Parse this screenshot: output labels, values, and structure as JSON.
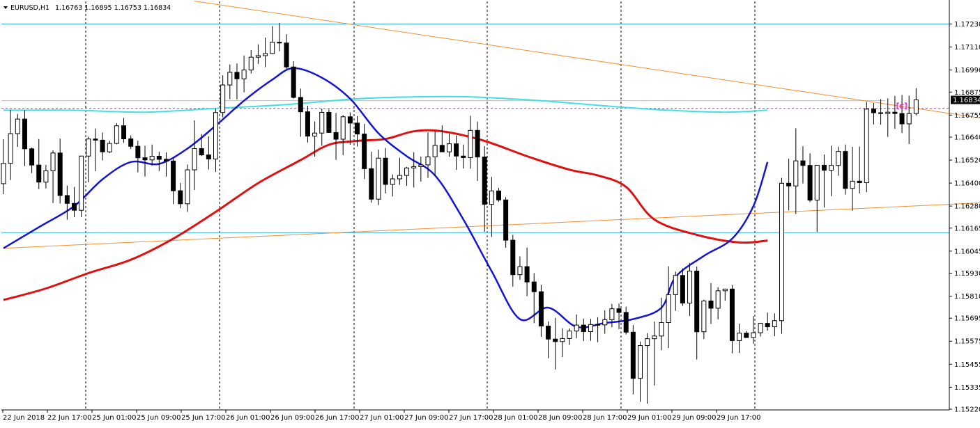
{
  "header": {
    "menu_icon": "triangle-down-icon",
    "symbol": "EURUSD,H1",
    "ohlc": "1.16763 1.16895 1.16753 1.16834"
  },
  "label_c": "【C】",
  "colors": {
    "fast_ma": "#1414d8",
    "slow_ma": "#e01010",
    "long_ma": "#40e0e0",
    "trendline": "#f09030",
    "hline": "#3aaee0",
    "label": "#ff33cc",
    "price_tag_bg": "#000000",
    "bull": "#ffffff",
    "bear": "#000000"
  },
  "chart_data": {
    "type": "candlestick",
    "symbol": "EURUSD",
    "timeframe": "H1",
    "grid": "vertical dashed at date labels",
    "ylim": [
      1.1522,
      1.1729
    ],
    "y_ticks": [
      "1.17230",
      "1.17110",
      "1.16990",
      "1.16875",
      "1.16755",
      "1.16640",
      "1.16520",
      "1.16400",
      "1.16280",
      "1.16165",
      "1.16045",
      "1.15930",
      "1.15810",
      "1.15695",
      "1.15575",
      "1.15455",
      "1.15335",
      "1.15220"
    ],
    "x_ticks": [
      "22 Jun 2018",
      "22 Jun 17:00",
      "25 Jun 01:00",
      "25 Jun 09:00",
      "25 Jun 17:00",
      "26 Jun 01:00",
      "26 Jun 09:00",
      "26 Jun 17:00",
      "27 Jun 01:00",
      "27 Jun 09:00",
      "27 Jun 17:00",
      "28 Jun 01:00",
      "28 Jun 09:00",
      "28 Jun 17:00",
      "29 Jun 01:00",
      "29 Jun 09:00",
      "29 Jun 17:00"
    ],
    "current_price": "1.16834",
    "horizontal_lines": [
      1.1723,
      1.1614
    ],
    "gray_line": 1.1683,
    "dashed_level": 1.1679,
    "trendlines": [
      {
        "name": "descending",
        "from": [
          27,
          1.1735
        ],
        "to": [
          138,
          1.1674
        ]
      },
      {
        "name": "ascending",
        "from": [
          0,
          1.1606
        ],
        "to": [
          140,
          1.163
        ]
      }
    ],
    "ma_fast": [
      [
        0,
        1.1606
      ],
      [
        5,
        1.1617
      ],
      [
        10,
        1.1628
      ],
      [
        14,
        1.1642
      ],
      [
        18,
        1.1651
      ],
      [
        22,
        1.165
      ],
      [
        26,
        1.1658
      ],
      [
        30,
        1.167
      ],
      [
        34,
        1.1683
      ],
      [
        38,
        1.1694
      ],
      [
        41,
        1.17
      ],
      [
        45,
        1.1695
      ],
      [
        49,
        1.1684
      ],
      [
        53,
        1.1666
      ],
      [
        57,
        1.1654
      ],
      [
        61,
        1.1644
      ],
      [
        65,
        1.1621
      ],
      [
        69,
        1.1594
      ],
      [
        73,
        1.1569
      ],
      [
        77,
        1.1575
      ],
      [
        81,
        1.1565
      ],
      [
        85,
        1.1567
      ],
      [
        89,
        1.1569
      ],
      [
        93,
        1.1575
      ],
      [
        95,
        1.1591
      ],
      [
        99,
        1.1602
      ],
      [
        103,
        1.1611
      ],
      [
        106,
        1.1628
      ],
      [
        108,
        1.1651
      ]
    ],
    "ma_slow": [
      [
        0,
        1.1579
      ],
      [
        6,
        1.1585
      ],
      [
        12,
        1.1593
      ],
      [
        18,
        1.16
      ],
      [
        24,
        1.1611
      ],
      [
        30,
        1.1625
      ],
      [
        36,
        1.164
      ],
      [
        42,
        1.1652
      ],
      [
        46,
        1.166
      ],
      [
        50,
        1.1662
      ],
      [
        54,
        1.1663
      ],
      [
        58,
        1.1667
      ],
      [
        62,
        1.1667
      ],
      [
        68,
        1.1662
      ],
      [
        74,
        1.1654
      ],
      [
        80,
        1.1647
      ],
      [
        84,
        1.1644
      ],
      [
        88,
        1.1638
      ],
      [
        92,
        1.1621
      ],
      [
        98,
        1.1613
      ],
      [
        104,
        1.1609
      ],
      [
        108,
        1.161
      ]
    ],
    "ma_long": [
      [
        0,
        1.1678
      ],
      [
        10,
        1.1678
      ],
      [
        20,
        1.1677
      ],
      [
        30,
        1.1679
      ],
      [
        40,
        1.1681
      ],
      [
        50,
        1.1684
      ],
      [
        58,
        1.1685
      ],
      [
        66,
        1.1685
      ],
      [
        76,
        1.1683
      ],
      [
        86,
        1.168
      ],
      [
        94,
        1.1678
      ],
      [
        102,
        1.1677
      ],
      [
        108,
        1.1678
      ]
    ],
    "candles": [
      [
        1.16397,
        1.16629,
        1.16342,
        1.16503
      ],
      [
        1.16503,
        1.16782,
        1.16416,
        1.16658
      ],
      [
        1.16658,
        1.16761,
        1.16589,
        1.16734
      ],
      [
        1.16734,
        1.1678,
        1.16489,
        1.16579
      ],
      [
        1.16579,
        1.16585,
        1.16452,
        1.16494
      ],
      [
        1.16494,
        1.1663,
        1.16369,
        1.16405
      ],
      [
        1.16405,
        1.16495,
        1.16372,
        1.16464
      ],
      [
        1.16464,
        1.1657,
        1.16296,
        1.16557
      ],
      [
        1.16557,
        1.16632,
        1.16293,
        1.16335
      ],
      [
        1.16335,
        1.16387,
        1.16209,
        1.16294
      ],
      [
        1.16294,
        1.1638,
        1.16222,
        1.16258
      ],
      [
        1.16258,
        1.16542,
        1.16222,
        1.16541
      ],
      [
        1.16541,
        1.16642,
        1.16404,
        1.1663
      ],
      [
        1.1663,
        1.16685,
        1.16462,
        1.16624
      ],
      [
        1.16624,
        1.16664,
        1.16518,
        1.16563
      ],
      [
        1.16563,
        1.16621,
        1.16556,
        1.16607
      ],
      [
        1.16607,
        1.16713,
        1.16602,
        1.16699
      ],
      [
        1.16699,
        1.1674,
        1.1661,
        1.16631
      ],
      [
        1.16631,
        1.16649,
        1.16578,
        1.16592
      ],
      [
        1.16592,
        1.16621,
        1.16456,
        1.16532
      ],
      [
        1.16532,
        1.16595,
        1.16434,
        1.16521
      ],
      [
        1.16521,
        1.16601,
        1.16491,
        1.1654
      ],
      [
        1.1654,
        1.16563,
        1.16463,
        1.16524
      ],
      [
        1.16524,
        1.1656,
        1.16434,
        1.16515
      ],
      [
        1.16515,
        1.16532,
        1.1629,
        1.1636
      ],
      [
        1.1636,
        1.16401,
        1.16269,
        1.16292
      ],
      [
        1.16292,
        1.16497,
        1.1625,
        1.16469
      ],
      [
        1.16469,
        1.16727,
        1.16364,
        1.1658
      ],
      [
        1.1658,
        1.16656,
        1.16541,
        1.16547
      ],
      [
        1.16547,
        1.16644,
        1.16471,
        1.16526
      ],
      [
        1.16526,
        1.16788,
        1.16458,
        1.16768
      ],
      [
        1.16768,
        1.16962,
        1.16743,
        1.16912
      ],
      [
        1.16912,
        1.17019,
        1.16838,
        1.16978
      ],
      [
        1.16978,
        1.17024,
        1.16837,
        1.16944
      ],
      [
        1.16944,
        1.17066,
        1.16874,
        1.1699
      ],
      [
        1.1699,
        1.17094,
        1.16972,
        1.17057
      ],
      [
        1.17057,
        1.17124,
        1.17022,
        1.17065
      ],
      [
        1.17065,
        1.17159,
        1.17005,
        1.17076
      ],
      [
        1.17076,
        1.17219,
        1.17073,
        1.17135
      ],
      [
        1.17135,
        1.17236,
        1.17088,
        1.17131
      ],
      [
        1.17131,
        1.17177,
        1.16996,
        1.17006
      ],
      [
        1.17006,
        1.17036,
        1.16841,
        1.16847
      ],
      [
        1.16847,
        1.16893,
        1.16642,
        1.16772
      ],
      [
        1.16772,
        1.16804,
        1.16612,
        1.16645
      ],
      [
        1.16645,
        1.16722,
        1.16538,
        1.16661
      ],
      [
        1.16661,
        1.16788,
        1.16595,
        1.16769
      ],
      [
        1.16769,
        1.16784,
        1.16662,
        1.16664
      ],
      [
        1.16664,
        1.16766,
        1.16521,
        1.16629
      ],
      [
        1.16629,
        1.16755,
        1.16546,
        1.16746
      ],
      [
        1.16746,
        1.16769,
        1.166,
        1.16713
      ],
      [
        1.16713,
        1.1675,
        1.16591,
        1.16656
      ],
      [
        1.16656,
        1.16709,
        1.16421,
        1.16475
      ],
      [
        1.16475,
        1.16563,
        1.16298,
        1.16316
      ],
      [
        1.16316,
        1.16575,
        1.16285,
        1.1653
      ],
      [
        1.1653,
        1.16583,
        1.16346,
        1.16393
      ],
      [
        1.16393,
        1.16445,
        1.1633,
        1.16422
      ],
      [
        1.16422,
        1.16532,
        1.16391,
        1.1644
      ],
      [
        1.1644,
        1.16485,
        1.16386,
        1.16479
      ],
      [
        1.16479,
        1.16561,
        1.16377,
        1.16486
      ],
      [
        1.16486,
        1.16538,
        1.16408,
        1.16495
      ],
      [
        1.16495,
        1.16664,
        1.16427,
        1.16537
      ],
      [
        1.16537,
        1.16671,
        1.16437,
        1.16597
      ],
      [
        1.16597,
        1.16701,
        1.16582,
        1.16563
      ],
      [
        1.16563,
        1.16658,
        1.16537,
        1.16605
      ],
      [
        1.16605,
        1.16648,
        1.16469,
        1.16541
      ],
      [
        1.16541,
        1.16601,
        1.16476,
        1.16533
      ],
      [
        1.16533,
        1.16751,
        1.16475,
        1.16675
      ],
      [
        1.16675,
        1.16721,
        1.16411,
        1.16536
      ],
      [
        1.16536,
        1.16593,
        1.16146,
        1.16289
      ],
      [
        1.16289,
        1.16432,
        1.16119,
        1.16359
      ],
      [
        1.16359,
        1.16375,
        1.16302,
        1.16312
      ],
      [
        1.16312,
        1.16327,
        1.16062,
        1.16102
      ],
      [
        1.16102,
        1.1613,
        1.1586,
        1.15922
      ],
      [
        1.15922,
        1.16017,
        1.15895,
        1.15964
      ],
      [
        1.15964,
        1.16064,
        1.1581,
        1.15884
      ],
      [
        1.15884,
        1.1593,
        1.15669,
        1.15833
      ],
      [
        1.15833,
        1.15869,
        1.15598,
        1.15654
      ],
      [
        1.15654,
        1.15678,
        1.15486,
        1.15586
      ],
      [
        1.15586,
        1.15697,
        1.15427,
        1.15573
      ],
      [
        1.15573,
        1.15642,
        1.15492,
        1.15589
      ],
      [
        1.15589,
        1.15642,
        1.15556,
        1.15628
      ],
      [
        1.15628,
        1.15715,
        1.15591,
        1.15659
      ],
      [
        1.15659,
        1.15692,
        1.15575,
        1.15625
      ],
      [
        1.15625,
        1.15691,
        1.15577,
        1.15662
      ],
      [
        1.15662,
        1.157,
        1.1557,
        1.1566
      ],
      [
        1.1566,
        1.15736,
        1.15614,
        1.15687
      ],
      [
        1.15687,
        1.1577,
        1.15648,
        1.15744
      ],
      [
        1.15744,
        1.15771,
        1.15638,
        1.15725
      ],
      [
        1.15725,
        1.15755,
        1.1561,
        1.15622
      ],
      [
        1.15622,
        1.15659,
        1.15298,
        1.15381
      ],
      [
        1.15381,
        1.15572,
        1.15259,
        1.15552
      ],
      [
        1.15552,
        1.15617,
        1.15249,
        1.15588
      ],
      [
        1.15588,
        1.15677,
        1.15344,
        1.15602
      ],
      [
        1.15602,
        1.15802,
        1.15528,
        1.15672
      ],
      [
        1.15672,
        1.15966,
        1.15539,
        1.15818
      ],
      [
        1.15818,
        1.15938,
        1.15733,
        1.15918
      ],
      [
        1.15918,
        1.15955,
        1.15759,
        1.15774
      ],
      [
        1.15774,
        1.15983,
        1.15707,
        1.15941
      ],
      [
        1.15941,
        1.15965,
        1.15479,
        1.15624
      ],
      [
        1.15624,
        1.15791,
        1.15586,
        1.15785
      ],
      [
        1.15785,
        1.15878,
        1.15665,
        1.15747
      ],
      [
        1.15747,
        1.15857,
        1.15689,
        1.15838
      ],
      [
        1.15838,
        1.15848,
        1.15786,
        1.15847
      ],
      [
        1.15847,
        1.15868,
        1.15512,
        1.15578
      ],
      [
        1.15578,
        1.15666,
        1.15514,
        1.15617
      ],
      [
        1.15617,
        1.15628,
        1.15592,
        1.15594
      ],
      [
        1.15594,
        1.15706,
        1.15561,
        1.15619
      ],
      [
        1.15619,
        1.15671,
        1.15599,
        1.15668
      ],
      [
        1.15668,
        1.15724,
        1.1563,
        1.1565
      ],
      [
        1.1565,
        1.1572,
        1.15601,
        1.15682
      ],
      [
        1.15682,
        1.16427,
        1.15614,
        1.16399
      ],
      [
        1.16399,
        1.16527,
        1.16257,
        1.16385
      ],
      [
        1.16385,
        1.16686,
        1.16239,
        1.16516
      ],
      [
        1.16516,
        1.16592,
        1.16398,
        1.16492
      ],
      [
        1.16492,
        1.16555,
        1.16301,
        1.16311
      ],
      [
        1.16311,
        1.16474,
        1.16145,
        1.16493
      ],
      [
        1.16493,
        1.16549,
        1.16273,
        1.16467
      ],
      [
        1.16467,
        1.16595,
        1.16332,
        1.16492
      ],
      [
        1.16492,
        1.1659,
        1.16438,
        1.16565
      ],
      [
        1.16565,
        1.16601,
        1.1634,
        1.16372
      ],
      [
        1.16372,
        1.16589,
        1.16256,
        1.1641
      ],
      [
        1.1641,
        1.16591,
        1.16346,
        1.16402
      ],
      [
        1.16402,
        1.16824,
        1.16352,
        1.16786
      ],
      [
        1.16786,
        1.16818,
        1.16706,
        1.16767
      ],
      [
        1.16767,
        1.16838,
        1.16705,
        1.16763
      ],
      [
        1.16763,
        1.16842,
        1.16641,
        1.1677
      ],
      [
        1.1677,
        1.16855,
        1.16683,
        1.16763
      ],
      [
        1.16763,
        1.1686,
        1.16661,
        1.16709
      ],
      [
        1.16709,
        1.16856,
        1.16604,
        1.16763
      ],
      [
        1.16763,
        1.16895,
        1.16753,
        1.16834
      ]
    ]
  }
}
